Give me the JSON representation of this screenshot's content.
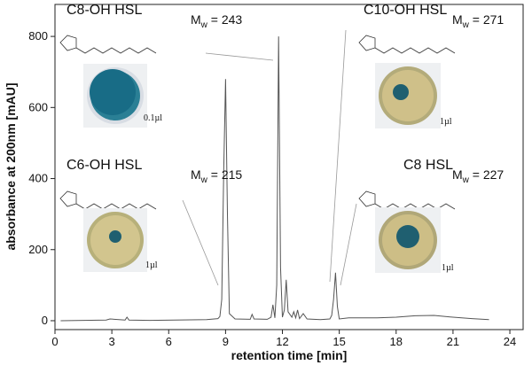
{
  "chart_data": {
    "type": "line",
    "x_label": "retention time [min]",
    "y_label": "absorbance at 200nm [mAU]",
    "xlim": [
      0,
      24.7
    ],
    "xticks": [
      0,
      3,
      6,
      9,
      12,
      15,
      18,
      21,
      24
    ],
    "ylim": [
      -25,
      890
    ],
    "yticks": [
      0,
      200,
      400,
      600,
      800
    ],
    "x": [
      0.3,
      2.7,
      2.9,
      3.7,
      3.8,
      3.9,
      5.0,
      8.0,
      8.6,
      8.7,
      8.8,
      8.9,
      9.0,
      9.1,
      9.2,
      9.5,
      10.3,
      10.4,
      10.5,
      11.2,
      11.4,
      11.5,
      11.6,
      11.7,
      11.8,
      11.9,
      12.0,
      12.1,
      12.2,
      12.3,
      12.5,
      12.6,
      12.7,
      12.8,
      12.9,
      13.1,
      13.3,
      14.0,
      14.5,
      14.6,
      14.7,
      14.8,
      14.9,
      15.0,
      15.5,
      17,
      18,
      19,
      20,
      21,
      22,
      22.9
    ],
    "series": [
      {
        "color": "#555555",
        "values": [
          0,
          2,
          5,
          2,
          10,
          2,
          1,
          3,
          6,
          12,
          60,
          420,
          680,
          300,
          20,
          5,
          4,
          18,
          5,
          4,
          10,
          45,
          8,
          100,
          800,
          150,
          10,
          30,
          115,
          25,
          10,
          25,
          8,
          30,
          6,
          20,
          5,
          3,
          5,
          15,
          60,
          135,
          40,
          5,
          8,
          8,
          10,
          14,
          15,
          10,
          6,
          3
        ]
      }
    ],
    "annotations": [
      {
        "name": "C8-OH HSL",
        "mw_symbol": "M",
        "mw_subscript": "w",
        "mw_value": " = 243",
        "volume": "0.1µl"
      },
      {
        "name": "C10-OH HSL",
        "mw_symbol": "M",
        "mw_subscript": "w",
        "mw_value": " = 271",
        "volume": "1µl"
      },
      {
        "name": "C6-OH HSL",
        "mw_symbol": "M",
        "mw_subscript": "w",
        "mw_value": " = 215",
        "volume": "1µl"
      },
      {
        "name": "C8 HSL",
        "mw_symbol": "M",
        "mw_subscript": "w",
        "mw_value": " = 227",
        "volume": "1µl"
      }
    ]
  }
}
